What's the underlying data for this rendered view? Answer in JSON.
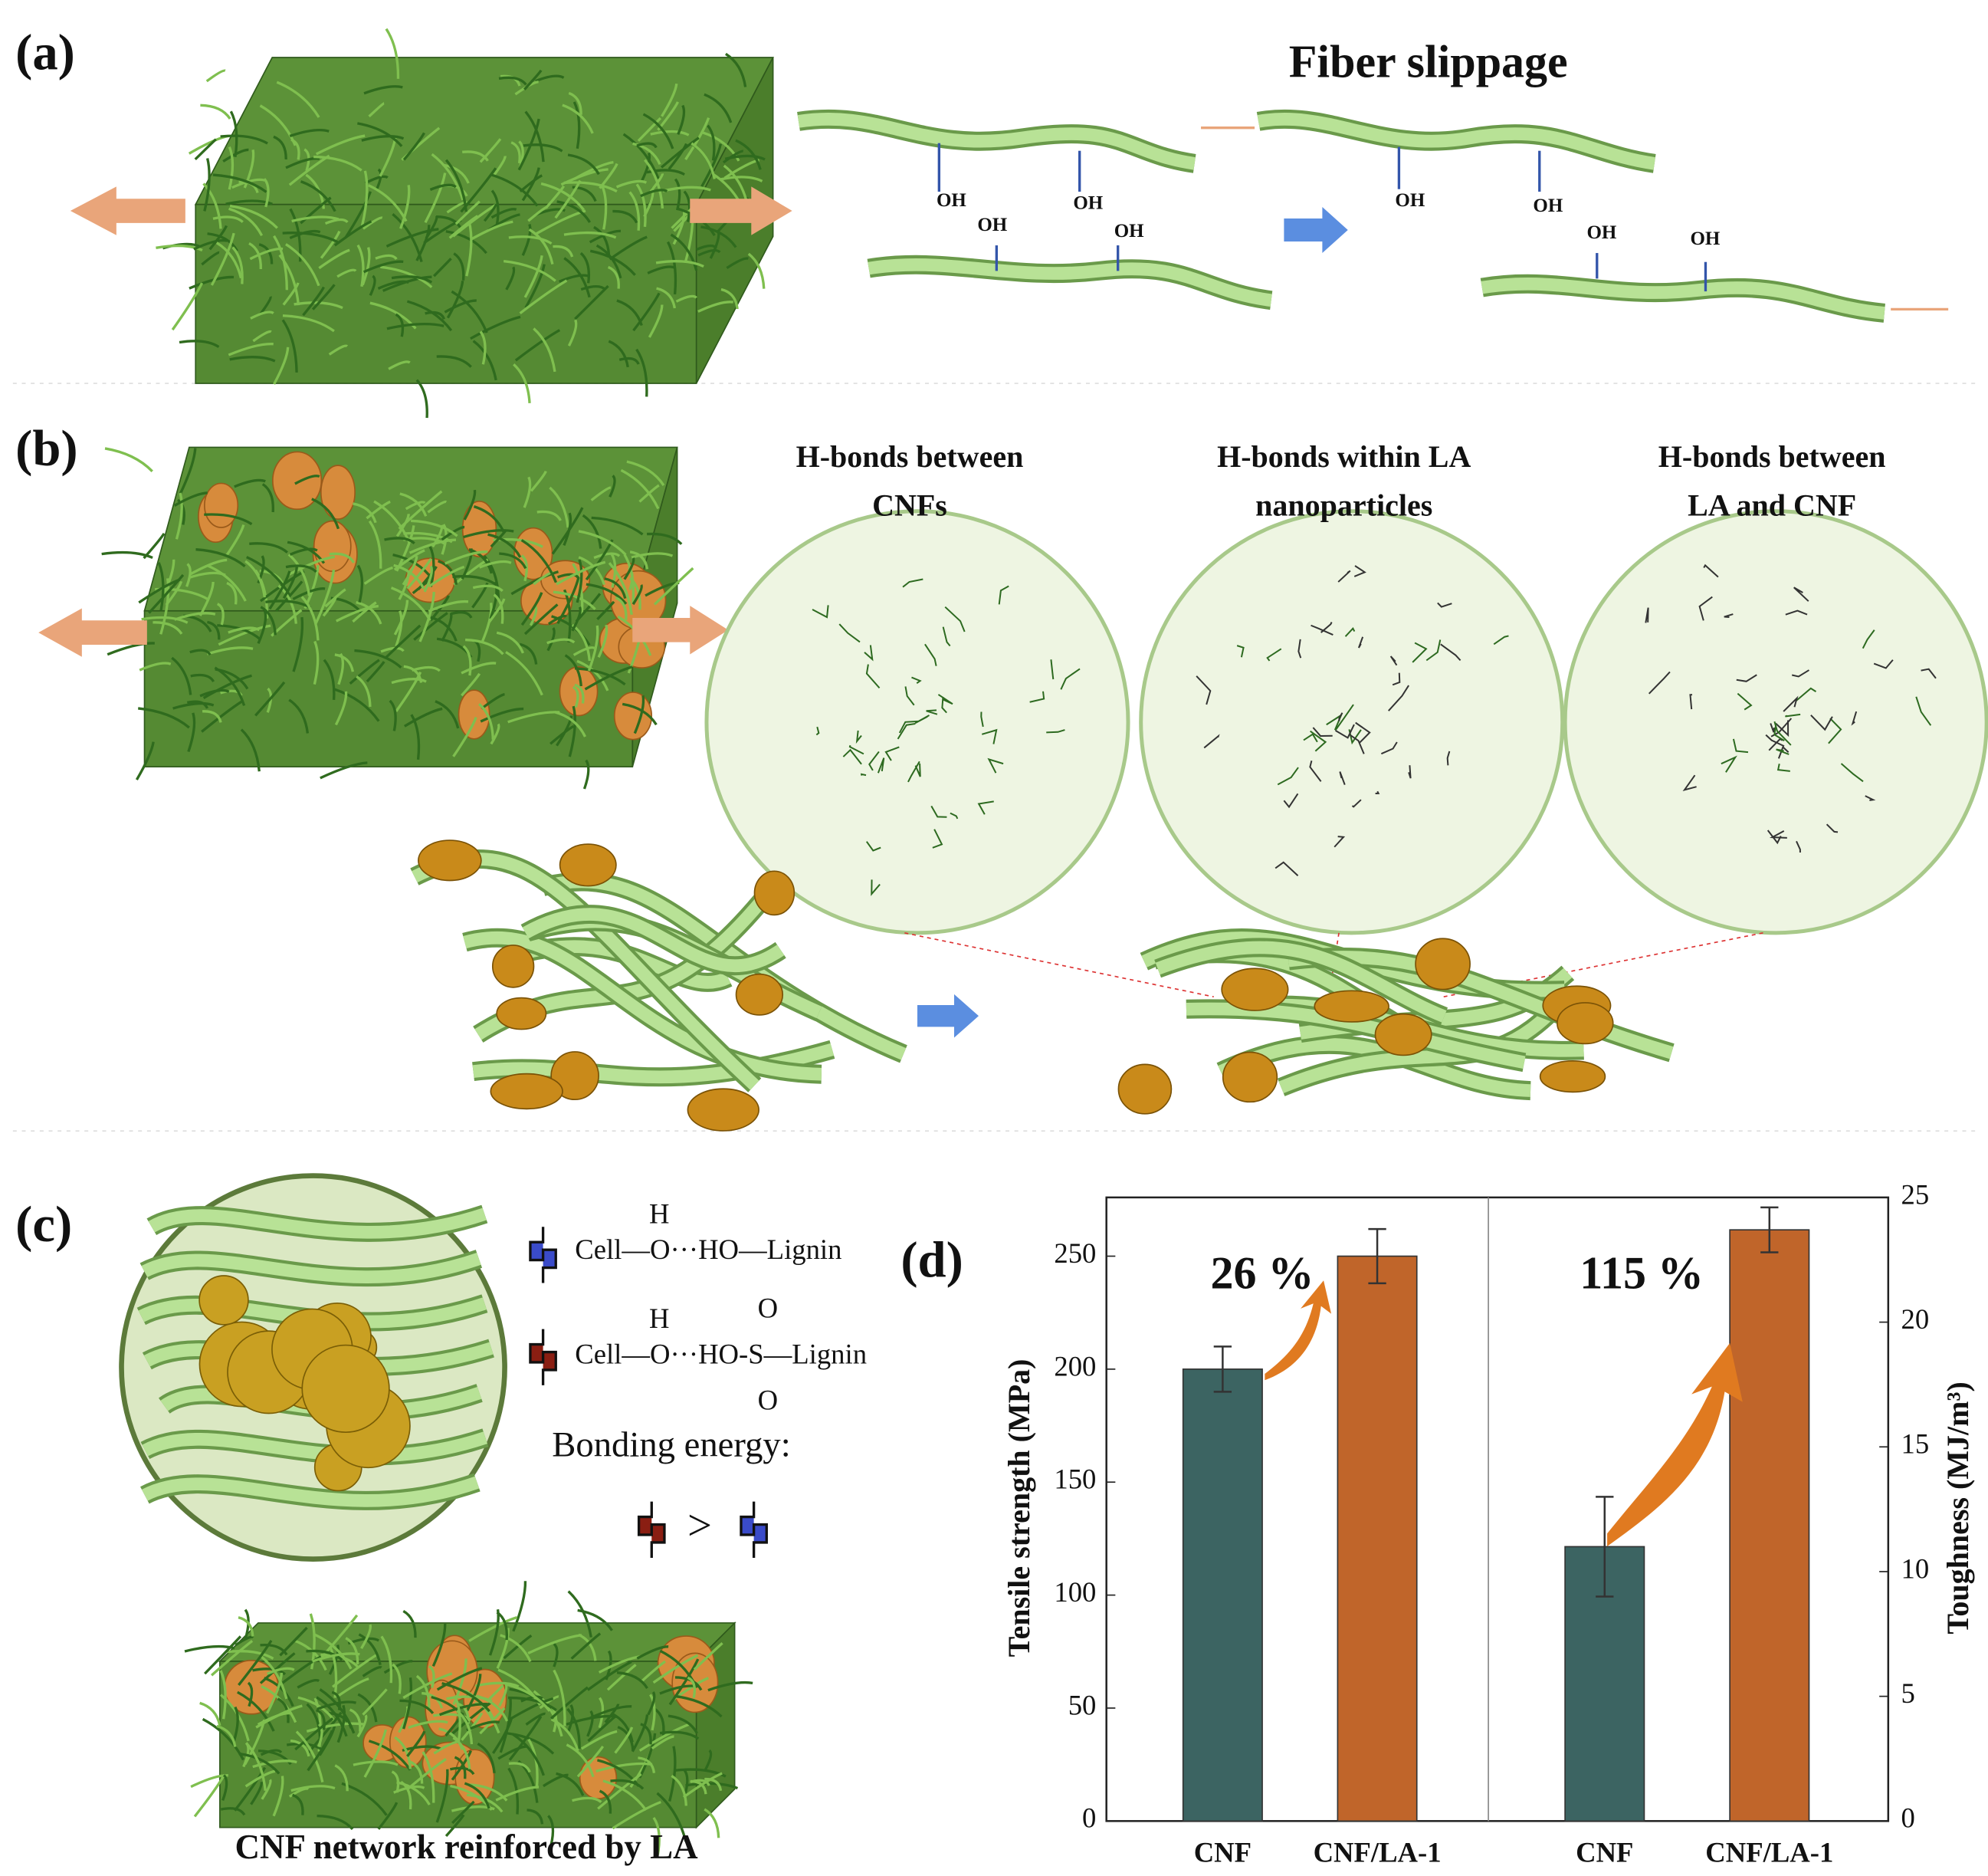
{
  "panel_a": {
    "label": "(a)",
    "title": "Fiber slippage",
    "oh_labels": [
      "OH",
      "OH",
      "OH",
      "OH",
      "OH",
      "OH",
      "OH",
      "OH"
    ]
  },
  "panel_b": {
    "label": "(b)",
    "headings": [
      [
        "H-bonds between",
        "CNFs"
      ],
      [
        "H-bonds within LA",
        "nanoparticles"
      ],
      [
        "H-bonds between",
        "LA and CNF"
      ]
    ]
  },
  "panel_c": {
    "label": "(c)",
    "bond_1": {
      "text": "Cell—O···HO—Lignin",
      "h": "H"
    },
    "bond_2": {
      "text": "Cell—O···HO-S—Lignin",
      "h": "H",
      "o_top": "O",
      "o_bottom": "O"
    },
    "bonding_energy": "Bonding energy:",
    "comparison": ">",
    "caption": "CNF network reinforced by LA"
  },
  "chart_data": {
    "type": "bar",
    "label": "(d)",
    "categories": [
      "CNF",
      "CNF/LA-1",
      "CNF",
      "CNF/LA-1"
    ],
    "y_label": "Tensile strength (MPa)",
    "y2_label": "Toughness (MJ/m³)",
    "ylim": [
      0,
      276
    ],
    "yticks": [
      0,
      50,
      100,
      150,
      200,
      250
    ],
    "y2lim": [
      0,
      25
    ],
    "y2ticks": [
      0,
      5,
      10,
      15,
      20,
      25
    ],
    "series": [
      {
        "color": "#3c6462",
        "values": [
          200,
          null,
          null,
          null
        ],
        "errors": [
          10,
          null,
          null,
          null
        ]
      },
      {
        "color": "#c0652a",
        "values": [
          null,
          250,
          null,
          null
        ],
        "errors": [
          null,
          12,
          null,
          null
        ]
      },
      {
        "color": "#3c6462",
        "axis": "y2",
        "values": [
          null,
          null,
          11,
          null
        ],
        "errors": [
          null,
          null,
          2,
          null
        ]
      },
      {
        "color": "#c0652a",
        "axis": "y2",
        "values": [
          null,
          null,
          null,
          23.7
        ],
        "errors": [
          null,
          null,
          null,
          0.9
        ]
      }
    ],
    "annotations": [
      "26 %",
      "115 %"
    ]
  }
}
